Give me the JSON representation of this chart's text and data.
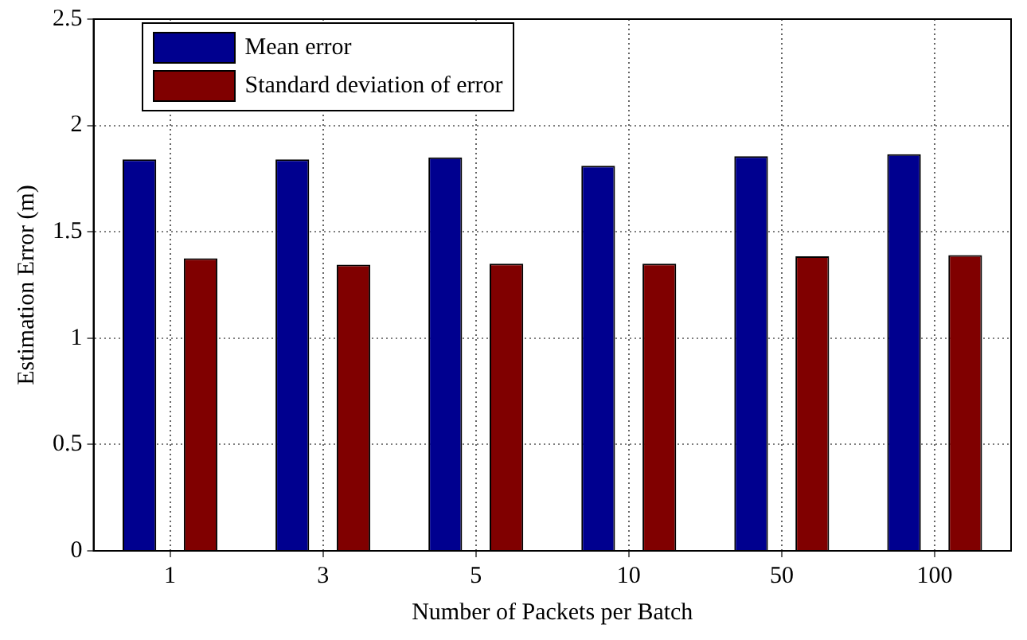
{
  "chart_data": {
    "type": "bar",
    "xlabel": "Number of Packets per Batch",
    "ylabel": "Estimation Error (m)",
    "categories": [
      "1",
      "3",
      "5",
      "10",
      "50",
      "100"
    ],
    "series": [
      {
        "name": "Mean error",
        "color": "#00008f",
        "values": [
          1.84,
          1.84,
          1.85,
          1.81,
          1.855,
          1.865
        ]
      },
      {
        "name": "Standard deviation of error",
        "color": "#800000",
        "values": [
          1.375,
          1.345,
          1.35,
          1.35,
          1.385,
          1.39
        ]
      }
    ],
    "ylim": [
      0,
      2.5
    ],
    "yticks": [
      0,
      0.5,
      1,
      1.5,
      2,
      2.5
    ],
    "grid": true,
    "legend": "top left"
  }
}
